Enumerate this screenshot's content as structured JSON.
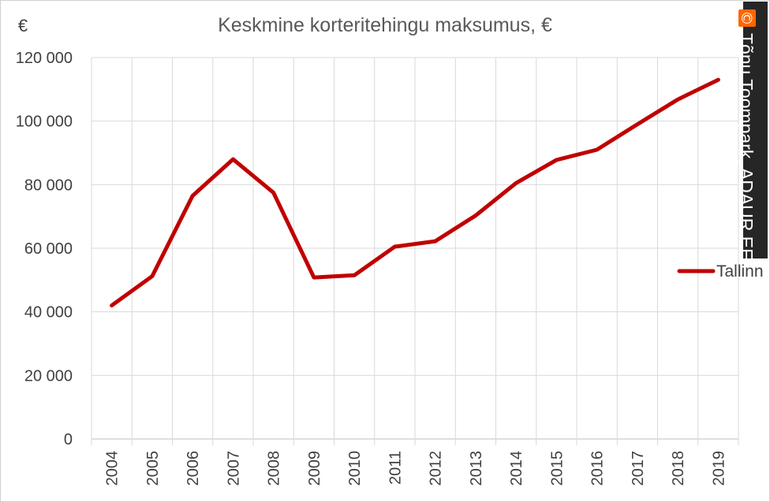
{
  "chart_data": {
    "type": "line",
    "title": "Keskmine korteritehingu maksumus, €",
    "ylabel": "€",
    "xlabel": "",
    "x": [
      "2004",
      "2005",
      "2006",
      "2007",
      "2008",
      "2009",
      "2010",
      "2011",
      "2012",
      "2013",
      "2014",
      "2015",
      "2016",
      "2017",
      "2018",
      "2019"
    ],
    "y_ticks": [
      "0",
      "20 000",
      "40 000",
      "60 000",
      "80 000",
      "100 000",
      "120 000"
    ],
    "ylim": [
      0,
      120000
    ],
    "grid": true,
    "legend_position": "right",
    "series": [
      {
        "name": "Tallinn",
        "color": "#c00000",
        "values": [
          42000,
          51200,
          76500,
          88000,
          77500,
          50800,
          51500,
          60500,
          62200,
          70300,
          80500,
          87800,
          91000,
          99000,
          106800,
          113000
        ]
      }
    ]
  },
  "watermark": {
    "symbol": "©",
    "text": "Tõnu Toompark, ADAUR.EE",
    "symbol_color": "#ff6600",
    "background": "#262626"
  }
}
